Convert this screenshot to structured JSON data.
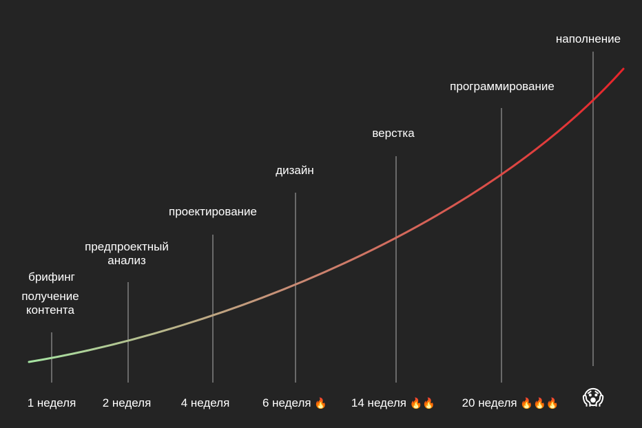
{
  "stages": [
    {
      "lines": [
        "брифинг"
      ]
    },
    {
      "lines": [
        "получение",
        "контента"
      ]
    },
    {
      "lines": [
        "предпроектный",
        "анализ"
      ]
    },
    {
      "lines": [
        "проектирование"
      ]
    },
    {
      "lines": [
        "дизайн"
      ]
    },
    {
      "lines": [
        "верстка"
      ]
    },
    {
      "lines": [
        "программирование"
      ]
    },
    {
      "lines": [
        "наполнение"
      ]
    }
  ],
  "weeks": [
    {
      "label": "1 неделя",
      "fire": ""
    },
    {
      "label": "2 неделя",
      "fire": ""
    },
    {
      "label": "4 неделя",
      "fire": ""
    },
    {
      "label": "6 неделя",
      "fire": "🔥"
    },
    {
      "label": "14 неделя",
      "fire": "🔥🔥"
    },
    {
      "label": "20 неделя",
      "fire": "🔥🔥🔥"
    },
    {
      "label": "",
      "fire": "😱"
    }
  ],
  "colors": {
    "background": "#242424",
    "curve_start": "#a6e5a3",
    "curve_mid": "#c98a74",
    "curve_end": "#e8242a",
    "marker_line": "#6a6a6a"
  }
}
